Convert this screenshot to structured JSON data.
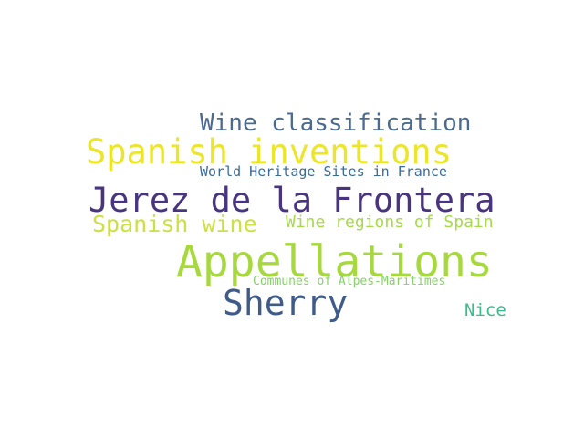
{
  "word_cloud": {
    "words": [
      {
        "id": "wine-classification",
        "text": "Wine classification",
        "color": "#4a6b91"
      },
      {
        "id": "spanish-inventions",
        "text": "Spanish inventions",
        "color": "#ece62a"
      },
      {
        "id": "world-heritage",
        "text": "World Heritage Sites in France",
        "color": "#3a6a9a"
      },
      {
        "id": "jerez",
        "text": "Jerez de la Frontera",
        "color": "#48347f"
      },
      {
        "id": "spanish-wine",
        "text": "Spanish wine",
        "color": "#cde043"
      },
      {
        "id": "wine-regions",
        "text": "Wine regions of Spain",
        "color": "#a6d94c"
      },
      {
        "id": "appellations",
        "text": "Appellations",
        "color": "#a7d93e"
      },
      {
        "id": "communes",
        "text": "Communes of Alpes-Maritimes",
        "color": "#86d169"
      },
      {
        "id": "sherry",
        "text": "Sherry",
        "color": "#3f5b8a"
      },
      {
        "id": "nice",
        "text": "Nice",
        "color": "#3cbc8a"
      }
    ]
  }
}
